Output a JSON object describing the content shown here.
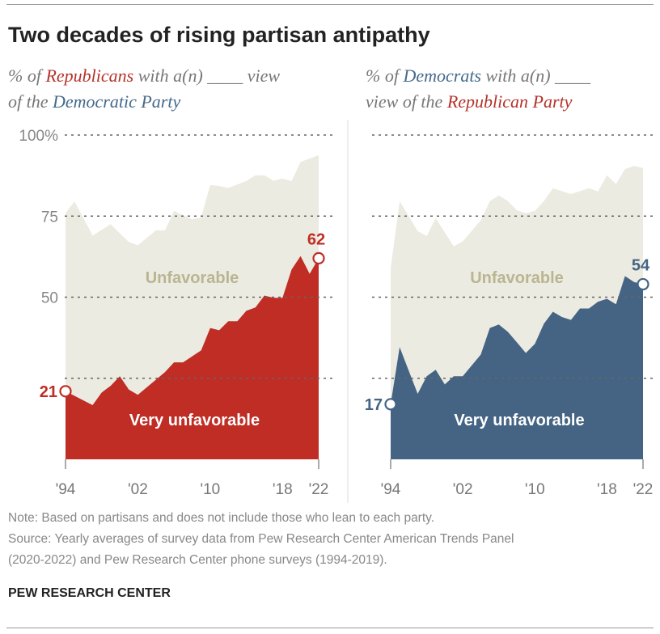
{
  "title": "Two decades of rising partisan antipathy",
  "panels": [
    {
      "subtitle": {
        "p1": "% of ",
        "group": "Republicans",
        "p2": " with a(n) ____ view",
        "p3": "of the ",
        "party": "Democratic Party"
      },
      "group_color": "#b5332a",
      "party_color": "#456a8c"
    },
    {
      "subtitle": {
        "p1": "% of ",
        "group": "Democrats",
        "p2": " with a(n) ____",
        "p3": "view of the ",
        "party": "Republican Party"
      },
      "group_color": "#456a8c",
      "party_color": "#b5332a"
    }
  ],
  "notes": {
    "note": "Note: Based on partisans and does not include those who lean to each party.",
    "source1": "Source: Yearly averages of survey data from Pew Research Center American Trends Panel",
    "source2": "(2020-2022) and Pew Research Center phone surveys (1994-2019)."
  },
  "brand": "PEW RESEARCH CENTER",
  "chart_data": [
    {
      "type": "area",
      "ylim": [
        0,
        100
      ],
      "yticks": [
        {
          "v": 100,
          "label": "100%"
        },
        {
          "v": 75,
          "label": "75"
        },
        {
          "v": 50,
          "label": "50"
        },
        {
          "v": 25,
          "label": ""
        }
      ],
      "xticks": [
        {
          "v": 1994,
          "label": "'94"
        },
        {
          "v": 2002,
          "label": "'02"
        },
        {
          "v": 2010,
          "label": "'10"
        },
        {
          "v": 2018,
          "label": "'18"
        },
        {
          "v": 2022,
          "label": "'22"
        }
      ],
      "grid": true,
      "fill_color": "#bf2d25",
      "unfavorable_color": "#ecebe1",
      "series": [
        {
          "name": "Unfavorable",
          "label_color": "#b9b592",
          "x": [
            1994,
            1995,
            1997,
            1999,
            2000,
            2001,
            2002,
            2004,
            2005,
            2006,
            2008,
            2009,
            2010,
            2011,
            2012,
            2014,
            2015,
            2016,
            2017,
            2018,
            2019,
            2020,
            2022
          ],
          "values": [
            76,
            79.5,
            69,
            72.5,
            69.7,
            67,
            66,
            70.6,
            70.6,
            76.6,
            74,
            74.6,
            84.6,
            84.3,
            83.7,
            85.8,
            87.6,
            87.6,
            85.9,
            86.6,
            85.8,
            91.7,
            93.8
          ]
        },
        {
          "name": "Very unfavorable",
          "label_color": "#ffffff",
          "x": [
            1994,
            1997,
            1998,
            1999,
            2000,
            2001,
            2002,
            2005,
            2006,
            2007,
            2009,
            2010,
            2011,
            2012,
            2013,
            2014,
            2015,
            2016,
            2017,
            2018,
            2019,
            2020,
            2021,
            2022
          ],
          "values": [
            21,
            16.7,
            20.6,
            22.7,
            25.6,
            21.5,
            19.9,
            26.9,
            29.9,
            29.9,
            33.6,
            40.5,
            39.8,
            42.6,
            42.6,
            45.8,
            46.8,
            50.5,
            49.8,
            49.8,
            58.5,
            62.7,
            57.2,
            62
          ]
        }
      ],
      "annotations": [
        {
          "x": 1994,
          "value": 21,
          "label": "21"
        },
        {
          "x": 2022,
          "value": 62,
          "label": "62"
        }
      ]
    },
    {
      "type": "area",
      "ylim": [
        0,
        100
      ],
      "xticks": [
        {
          "v": 1994,
          "label": "'94"
        },
        {
          "v": 2002,
          "label": "'02"
        },
        {
          "v": 2010,
          "label": "'10"
        },
        {
          "v": 2018,
          "label": "'18"
        },
        {
          "v": 2022,
          "label": "'22"
        }
      ],
      "grid": true,
      "fill_color": "#456484",
      "unfavorable_color": "#ecebe1",
      "series": [
        {
          "name": "Unfavorable",
          "label_color": "#b9b592",
          "x": [
            1994,
            1995,
            1997,
            1998,
            1999,
            2000,
            2001,
            2002,
            2004,
            2005,
            2006,
            2007,
            2008,
            2009,
            2010,
            2011,
            2012,
            2014,
            2016,
            2017,
            2018,
            2019,
            2020,
            2021,
            2022
          ],
          "values": [
            59,
            79.6,
            70.4,
            68.9,
            74.4,
            70,
            65.7,
            67.2,
            73.7,
            79.6,
            81.4,
            79.6,
            76.8,
            75.9,
            76.6,
            79.6,
            83.6,
            81.8,
            83.6,
            82.6,
            87.6,
            84.9,
            89.5,
            90.5,
            89.8
          ]
        },
        {
          "name": "Very unfavorable",
          "label_color": "#ffffff",
          "x": [
            1994,
            1995,
            1997,
            1998,
            1999,
            2000,
            2001,
            2002,
            2004,
            2005,
            2006,
            2007,
            2008,
            2009,
            2010,
            2011,
            2012,
            2013,
            2014,
            2015,
            2016,
            2017,
            2018,
            2019,
            2020,
            2021,
            2022
          ],
          "values": [
            17,
            34.6,
            20.2,
            25.6,
            27.6,
            23.1,
            25.6,
            25.6,
            32.3,
            40.5,
            41.6,
            39.3,
            36.1,
            32.8,
            35.6,
            41.8,
            45.5,
            43.9,
            43,
            46.5,
            46.5,
            48.6,
            49.5,
            47.8,
            56.5,
            54.7,
            54
          ]
        }
      ],
      "annotations": [
        {
          "x": 1994,
          "value": 17,
          "label": "17"
        },
        {
          "x": 2022,
          "value": 54,
          "label": "54"
        }
      ]
    }
  ]
}
